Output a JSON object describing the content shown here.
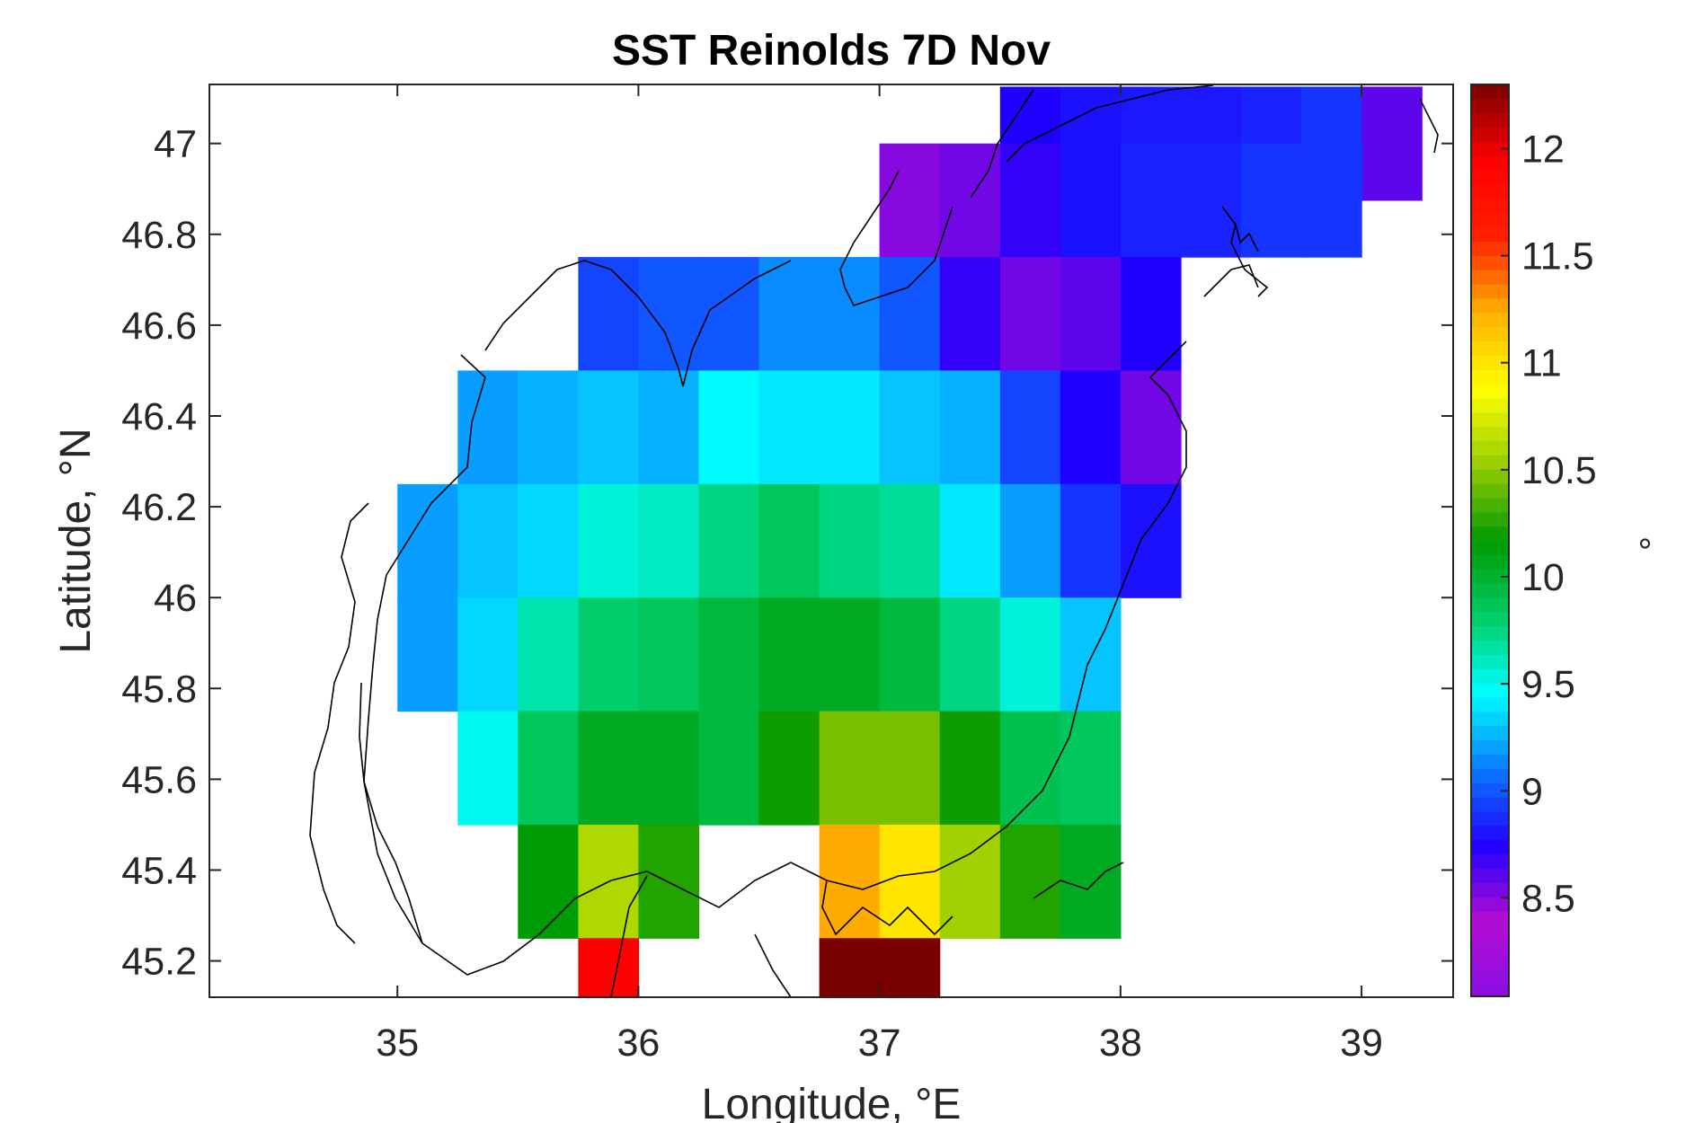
{
  "chart_data": {
    "type": "heatmap",
    "title": "SST Reinolds 7D Nov",
    "xlabel": "Longitude, °E",
    "ylabel": "Latitude, °N",
    "colorbar_label": "°",
    "xlim": [
      34.22,
      39.38
    ],
    "ylim": [
      45.12,
      47.13
    ],
    "xticks": [
      35,
      36,
      37,
      38,
      39
    ],
    "xtick_labels": [
      "35",
      "36",
      "37",
      "38",
      "39"
    ],
    "yticks": [
      45.2,
      45.4,
      45.6,
      45.8,
      46,
      46.2,
      46.4,
      46.6,
      46.8,
      47
    ],
    "ytick_labels": [
      "45.2",
      "45.4",
      "45.6",
      "45.8",
      "46",
      "46.2",
      "46.4",
      "46.6",
      "46.8",
      "47"
    ],
    "clim": [
      8.04,
      12.3
    ],
    "cticks": [
      8.5,
      9,
      9.5,
      10,
      10.5,
      11,
      11.5,
      12
    ],
    "ctick_labels": [
      "8.5",
      "9",
      "9.5",
      "10",
      "10.5",
      "11",
      "11.5",
      "12"
    ],
    "colormap": [
      "#8a0fe6",
      "#b30dd1",
      "#1f00ff",
      "#0a7bff",
      "#00ffff",
      "#00cc66",
      "#009900",
      "#99cc00",
      "#ffff00",
      "#ffb000",
      "#ff2000",
      "#ff0000",
      "#7a0000"
    ],
    "grid": false,
    "cell_size_deg": 0.25,
    "grid_lon_centers": [
      34.875,
      35.125,
      35.375,
      35.625,
      35.875,
      36.125,
      36.375,
      36.625,
      36.875,
      37.125,
      37.375,
      37.625,
      37.875,
      38.125,
      38.375,
      38.625,
      38.875,
      39.125
    ],
    "grid_lat_centers": [
      47.0,
      46.875,
      46.625,
      46.375,
      46.125,
      45.875,
      45.625,
      45.375,
      45.125
    ],
    "rows": [
      [
        null,
        null,
        null,
        null,
        null,
        null,
        null,
        null,
        null,
        null,
        null,
        8.75,
        8.8,
        8.82,
        8.82,
        8.85,
        8.9,
        8.6
      ],
      [
        null,
        null,
        null,
        null,
        null,
        null,
        null,
        null,
        null,
        8.5,
        8.55,
        8.7,
        8.8,
        8.85,
        8.85,
        8.9,
        8.9,
        null
      ],
      [
        null,
        null,
        null,
        null,
        8.95,
        9.0,
        9.0,
        9.15,
        9.15,
        9.0,
        8.7,
        8.55,
        8.6,
        8.75,
        null,
        null,
        null,
        null
      ],
      [
        null,
        null,
        9.2,
        9.25,
        9.3,
        9.25,
        9.45,
        9.4,
        9.4,
        9.3,
        9.25,
        8.95,
        8.75,
        8.55,
        null,
        null,
        null,
        null
      ],
      [
        null,
        9.2,
        9.3,
        9.35,
        9.55,
        9.6,
        9.75,
        9.85,
        9.75,
        9.7,
        9.4,
        9.2,
        8.9,
        8.8,
        null,
        null,
        null,
        null
      ],
      [
        null,
        9.2,
        9.35,
        9.65,
        9.8,
        9.85,
        9.95,
        10.05,
        10.05,
        9.95,
        9.75,
        9.55,
        9.3,
        null,
        null,
        null,
        null,
        null
      ],
      [
        null,
        null,
        9.5,
        9.85,
        10.05,
        10.05,
        9.95,
        10.2,
        10.45,
        10.45,
        10.2,
        9.9,
        9.85,
        null,
        null,
        null,
        null,
        null
      ],
      [
        null,
        null,
        null,
        10.15,
        10.6,
        10.25,
        null,
        null,
        11.25,
        11.0,
        10.55,
        10.25,
        10.05,
        null,
        null,
        null,
        null,
        null
      ],
      [
        null,
        null,
        null,
        null,
        11.95,
        null,
        null,
        null,
        12.3,
        12.3,
        null,
        null,
        null,
        null,
        null,
        null,
        null,
        null
      ]
    ]
  }
}
